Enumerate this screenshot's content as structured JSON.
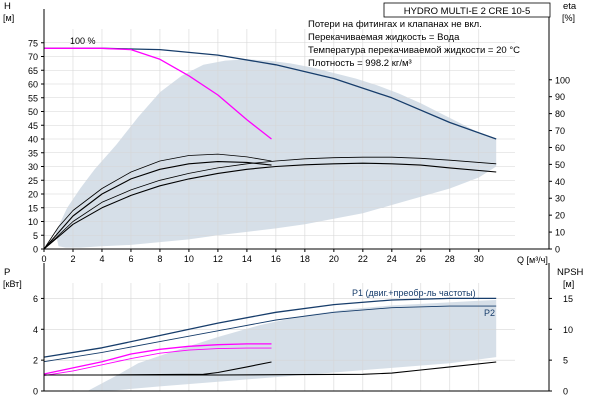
{
  "chart_data": [
    {
      "id": "head-efficiency",
      "type": "line",
      "title": "HYDRO MULTI-E 2 CRE 10-5",
      "annotations": [
        "Потери на фитингах и клапанах не вкл.",
        "Перекачиваемая жидкость = Вода",
        "Температура перекачиваемой жидкости = 20 °C",
        "Плотность = 998.2 кг/м³"
      ],
      "xlabel": "Q [м³/ч]",
      "ylabel_left": [
        "H",
        "[м]"
      ],
      "ylabel_right": [
        "eta",
        "[%]"
      ],
      "xlim": [
        0,
        32.5
      ],
      "ylim_left": [
        0,
        80
      ],
      "ylim_right": [
        0,
        130
      ],
      "x_ticks": [
        0,
        2,
        4,
        6,
        8,
        10,
        12,
        14,
        16,
        18,
        20,
        22,
        24,
        26,
        28,
        30
      ],
      "y_ticks_left": [
        0,
        5,
        10,
        15,
        20,
        25,
        30,
        35,
        40,
        45,
        50,
        55,
        60,
        65,
        70,
        75
      ],
      "y_ticks_right": [
        0,
        10,
        20,
        30,
        40,
        50,
        60,
        70,
        80,
        90,
        100
      ],
      "label_100": "100 %",
      "colors": {
        "envelope": "#c8d4e0",
        "max_curve": "#173d6b",
        "duty_curve": "#ff00ff",
        "eff_curve": "#000000",
        "grid": "#d6d6d6"
      },
      "series": [
        {
          "key": "h_max",
          "axis": "left",
          "x": [
            0,
            4,
            8,
            12,
            16,
            20,
            24,
            28,
            31.2
          ],
          "y": [
            73,
            73,
            72.5,
            70.5,
            67,
            62,
            55,
            46,
            40
          ]
        },
        {
          "key": "h_duty",
          "axis": "left",
          "x": [
            0,
            2,
            4,
            6,
            8,
            10,
            12,
            14,
            15.7
          ],
          "y": [
            73,
            73,
            73,
            72.5,
            69,
            63,
            56,
            47,
            40
          ]
        },
        {
          "key": "eta_a",
          "axis": "left",
          "x": [
            0,
            1,
            2,
            4,
            6,
            8,
            10,
            12,
            14,
            15.7
          ],
          "y": [
            0,
            6,
            12,
            20,
            25.5,
            29,
            31,
            31.8,
            31.5,
            30.5
          ]
        },
        {
          "key": "eta_b",
          "axis": "left",
          "x": [
            0,
            1,
            2,
            4,
            6,
            8,
            10,
            12,
            14,
            15.7
          ],
          "y": [
            0,
            8,
            14,
            22,
            28,
            32,
            34,
            34.5,
            33.5,
            32
          ]
        },
        {
          "key": "eta_c",
          "axis": "left",
          "x": [
            0,
            2,
            4,
            6,
            8,
            10,
            12,
            14,
            16,
            18,
            20,
            22,
            24,
            26,
            28,
            31.2
          ],
          "y": [
            0,
            9,
            15,
            19.5,
            23,
            25.5,
            27.5,
            29,
            30,
            30.6,
            31,
            31.2,
            31,
            30.5,
            29.5,
            28
          ]
        },
        {
          "key": "eta_d",
          "axis": "left",
          "x": [
            0,
            2,
            4,
            6,
            8,
            10,
            12,
            14,
            16,
            18,
            20,
            22,
            24,
            26,
            28,
            31.2
          ],
          "y": [
            0,
            10,
            17,
            21.5,
            25,
            27.5,
            29.5,
            31,
            32,
            32.8,
            33.2,
            33.4,
            33.4,
            33,
            32.3,
            31
          ]
        }
      ],
      "envelope": {
        "x": [
          0.8,
          1.6,
          2.5,
          3.5,
          5,
          6.5,
          8,
          9.5,
          11,
          12.5,
          14,
          15.5,
          17,
          18.5,
          20,
          21.5,
          23,
          24.5,
          26,
          27.5,
          29,
          30.5,
          31.2,
          31.2,
          30,
          28,
          26,
          24,
          22,
          20,
          18,
          16,
          14,
          12,
          10,
          8,
          6,
          4,
          2.5,
          1.5,
          1.0
        ],
        "y": [
          6,
          15,
          22,
          29,
          38,
          48,
          57,
          63,
          67,
          68.5,
          69,
          68.5,
          67.5,
          66,
          64,
          62,
          59.5,
          56.5,
          53,
          49,
          45,
          41,
          40,
          30,
          26,
          22,
          19,
          16,
          13,
          11,
          9,
          7.5,
          6.2,
          5,
          3.5,
          2.5,
          1.5,
          1.0,
          0.5,
          0.5,
          1.0
        ]
      }
    },
    {
      "id": "power-npsh",
      "type": "line",
      "ylabel_left": [
        "P",
        "[кВт]"
      ],
      "ylabel_right": [
        "NPSH",
        "[м]"
      ],
      "xlim": [
        0,
        32.5
      ],
      "ylim_left": [
        0,
        7
      ],
      "ylim_right": [
        0,
        17.5
      ],
      "y_ticks_left": [
        0,
        2,
        4,
        6
      ],
      "y_ticks_right": [
        0,
        5,
        10,
        15
      ],
      "legend": {
        "p1": "P1 (двиг.+преобр-ль частоты)",
        "p2": "P2"
      },
      "colors": {
        "envelope": "#c8d4e0",
        "max_curve": "#173d6b",
        "duty_curve": "#ff00ff",
        "npsh_curve": "#000000",
        "grid": "#d6d6d6"
      },
      "series": [
        {
          "key": "p1_max",
          "axis": "left",
          "x": [
            0,
            4,
            8,
            12,
            16,
            20,
            24,
            28,
            31.2
          ],
          "y": [
            2.2,
            2.8,
            3.6,
            4.4,
            5.1,
            5.6,
            5.9,
            6.0,
            6.0
          ]
        },
        {
          "key": "p2_max",
          "axis": "left",
          "x": [
            0,
            4,
            8,
            12,
            16,
            20,
            24,
            28,
            31.2
          ],
          "y": [
            1.9,
            2.5,
            3.2,
            3.9,
            4.6,
            5.1,
            5.4,
            5.5,
            5.5
          ]
        },
        {
          "key": "p1_duty",
          "axis": "left",
          "x": [
            0,
            2,
            4,
            6,
            8,
            10,
            12,
            14,
            15.7
          ],
          "y": [
            1.1,
            1.5,
            1.9,
            2.4,
            2.7,
            2.9,
            3.0,
            3.05,
            3.05
          ]
        },
        {
          "key": "p2_duty",
          "axis": "left",
          "x": [
            0,
            2,
            4,
            6,
            8,
            10,
            12,
            14,
            15.7
          ],
          "y": [
            1.0,
            1.3,
            1.7,
            2.1,
            2.45,
            2.65,
            2.75,
            2.78,
            2.78
          ]
        },
        {
          "key": "npsh_duty",
          "axis": "right",
          "x": [
            0,
            4,
            8,
            11,
            12,
            14,
            15.7
          ],
          "y": [
            2.6,
            2.6,
            2.65,
            2.7,
            3.0,
            3.9,
            4.7
          ]
        },
        {
          "key": "npsh_max",
          "axis": "right",
          "x": [
            0,
            6,
            12,
            18,
            22,
            24,
            26,
            28,
            31.2
          ],
          "y": [
            2.6,
            2.6,
            2.6,
            2.65,
            2.7,
            2.9,
            3.4,
            3.9,
            4.7
          ]
        }
      ],
      "envelope": {
        "x": [
          3,
          5,
          6.5,
          9,
          12,
          15,
          18,
          21,
          24,
          27,
          30,
          31.2,
          31.2,
          28,
          24,
          20,
          16,
          12,
          8,
          5,
          3.5
        ],
        "y": [
          0,
          1.0,
          1.8,
          2.6,
          3.5,
          4.3,
          4.9,
          5.3,
          5.55,
          5.7,
          5.85,
          5.9,
          2.2,
          1.8,
          1.5,
          1.2,
          0.9,
          0.6,
          0.3,
          0.05,
          0
        ]
      }
    }
  ]
}
